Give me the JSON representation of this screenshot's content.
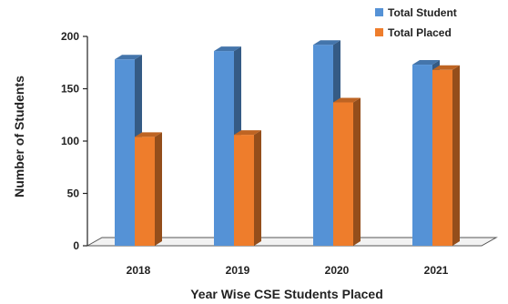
{
  "chart_data": {
    "type": "bar",
    "categories": [
      "2018",
      "2019",
      "2020",
      "2021"
    ],
    "series": [
      {
        "name": "Total Student",
        "values": [
          178,
          186,
          192,
          173
        ],
        "color": "#5592d6"
      },
      {
        "name": "Total Placed",
        "values": [
          104,
          106,
          137,
          168
        ],
        "color": "#ee7d2c"
      }
    ],
    "xlabel": "Year Wise CSE Students Placed",
    "ylabel": "Number of Students",
    "ylim": [
      0,
      200
    ],
    "yticks": [
      0,
      50,
      100,
      150,
      200
    ],
    "grid": false,
    "legend_position": "top-right",
    "style": "3d-columns"
  }
}
